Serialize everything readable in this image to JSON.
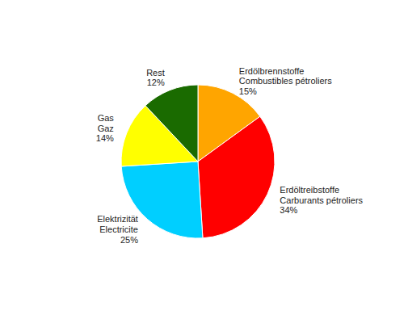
{
  "chart_data": {
    "type": "pie",
    "categories": [
      "Erdölbrennstoffe\nCombustibles pétroliers",
      "Erdöltreibstoffe\nCarburants pétroliers",
      "Elektrizität\nElectricite",
      "Gas\nGaz",
      "Rest"
    ],
    "values": [
      15,
      34,
      25,
      14,
      12
    ],
    "value_labels": [
      "15%",
      "34%",
      "25%",
      "14%",
      "12%"
    ],
    "colors": [
      "#FFA500",
      "#FF0000",
      "#00CFFF",
      "#FFFF00",
      "#1A6B00"
    ],
    "data_labels": true
  }
}
